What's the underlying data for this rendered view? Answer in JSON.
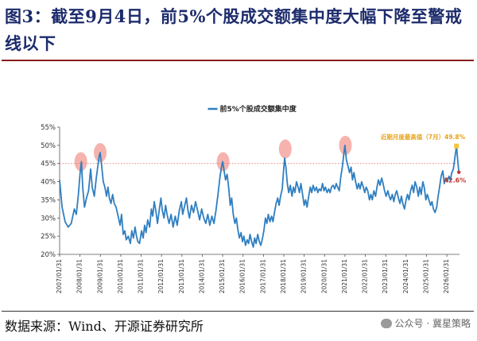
{
  "header": {
    "title": "图3：截至9月4日，前5%个股成交额集中度大幅下降至警戒线以下"
  },
  "footer": {
    "source": "数据来源：Wind、开源证券研究所",
    "watermark": "公众号 · 冀星策略"
  },
  "chart_data": {
    "type": "line",
    "title": "",
    "legend_position": "top-center",
    "grid": false,
    "xlabel": "",
    "ylabel": "",
    "ylim": [
      20,
      55
    ],
    "y_ticks": [
      "20%",
      "25%",
      "30%",
      "35%",
      "40%",
      "45%",
      "50%",
      "55%"
    ],
    "x_ticks": [
      "2007/01/31",
      "2008/01/31",
      "2009/01/31",
      "2010/01/31",
      "2011/01/31",
      "2012/01/31",
      "2013/01/31",
      "2014/01/31",
      "2015/01/31",
      "2016/01/31",
      "2017/01/31",
      "2018/01/31",
      "2019/01/31",
      "2020/01/31",
      "2021/01/31",
      "2022/01/31",
      "2023/01/31",
      "2024/01/31",
      "2025/01/31",
      "2026/01/31"
    ],
    "x_range": [
      2007.08,
      2026.7
    ],
    "reference_line": {
      "value": 45,
      "color": "#e57373",
      "style": "dotted"
    },
    "highlight_circles": [
      {
        "x": 2008.12,
        "y": 45.5
      },
      {
        "x": 2009.07,
        "y": 48.0
      },
      {
        "x": 2015.1,
        "y": 45.5
      },
      {
        "x": 2018.15,
        "y": 49.0
      },
      {
        "x": 2021.1,
        "y": 50.0
      }
    ],
    "annotations": {
      "high": {
        "label": "近期月度最高值（7月）49.8%",
        "x": 2026.55,
        "y": 49.8,
        "color": "#f5c542"
      },
      "low": {
        "label": "42.6%",
        "x": 2026.67,
        "y": 42.6,
        "color": "#c0392b"
      }
    },
    "series": [
      {
        "name": "前5%个股成交额集中度",
        "color": "#2f7fc1",
        "points": [
          [
            2007.08,
            40.5
          ],
          [
            2007.2,
            33.0
          ],
          [
            2007.35,
            29.0
          ],
          [
            2007.5,
            27.5
          ],
          [
            2007.65,
            28.5
          ],
          [
            2007.8,
            32.5
          ],
          [
            2007.9,
            31.0
          ],
          [
            2008.0,
            36.5
          ],
          [
            2008.08,
            42.0
          ],
          [
            2008.15,
            45.5
          ],
          [
            2008.22,
            38.0
          ],
          [
            2008.3,
            33.0
          ],
          [
            2008.4,
            35.5
          ],
          [
            2008.5,
            37.5
          ],
          [
            2008.6,
            43.5
          ],
          [
            2008.68,
            38.5
          ],
          [
            2008.78,
            36.0
          ],
          [
            2008.88,
            41.0
          ],
          [
            2008.95,
            44.0
          ],
          [
            2009.02,
            47.0
          ],
          [
            2009.07,
            48.0
          ],
          [
            2009.14,
            44.5
          ],
          [
            2009.22,
            40.0
          ],
          [
            2009.3,
            38.5
          ],
          [
            2009.38,
            36.0
          ],
          [
            2009.45,
            38.5
          ],
          [
            2009.52,
            35.5
          ],
          [
            2009.6,
            34.0
          ],
          [
            2009.68,
            36.5
          ],
          [
            2009.76,
            34.0
          ],
          [
            2009.85,
            33.0
          ],
          [
            2009.95,
            30.5
          ],
          [
            2010.05,
            28.0
          ],
          [
            2010.12,
            31.0
          ],
          [
            2010.2,
            25.5
          ],
          [
            2010.28,
            26.5
          ],
          [
            2010.35,
            24.0
          ],
          [
            2010.45,
            25.0
          ],
          [
            2010.55,
            23.0
          ],
          [
            2010.62,
            26.5
          ],
          [
            2010.7,
            24.5
          ],
          [
            2010.78,
            27.5
          ],
          [
            2010.85,
            25.0
          ],
          [
            2010.92,
            23.5
          ],
          [
            2011.0,
            23.0
          ],
          [
            2011.1,
            26.5
          ],
          [
            2011.18,
            24.5
          ],
          [
            2011.25,
            28.0
          ],
          [
            2011.32,
            26.0
          ],
          [
            2011.4,
            29.5
          ],
          [
            2011.5,
            27.5
          ],
          [
            2011.58,
            32.5
          ],
          [
            2011.65,
            30.5
          ],
          [
            2011.72,
            34.5
          ],
          [
            2011.8,
            32.0
          ],
          [
            2011.88,
            28.5
          ],
          [
            2011.95,
            31.5
          ],
          [
            2012.05,
            35.5
          ],
          [
            2012.12,
            32.0
          ],
          [
            2012.2,
            30.0
          ],
          [
            2012.28,
            33.5
          ],
          [
            2012.35,
            31.0
          ],
          [
            2012.45,
            28.5
          ],
          [
            2012.55,
            31.0
          ],
          [
            2012.65,
            27.5
          ],
          [
            2012.75,
            30.5
          ],
          [
            2012.85,
            28.0
          ],
          [
            2012.95,
            32.0
          ],
          [
            2013.05,
            34.5
          ],
          [
            2013.12,
            31.0
          ],
          [
            2013.2,
            33.0
          ],
          [
            2013.3,
            35.5
          ],
          [
            2013.38,
            32.0
          ],
          [
            2013.45,
            30.0
          ],
          [
            2013.55,
            33.5
          ],
          [
            2013.65,
            31.5
          ],
          [
            2013.75,
            34.5
          ],
          [
            2013.85,
            32.0
          ],
          [
            2013.95,
            29.5
          ],
          [
            2014.05,
            32.5
          ],
          [
            2014.15,
            30.0
          ],
          [
            2014.25,
            28.5
          ],
          [
            2014.35,
            31.0
          ],
          [
            2014.45,
            28.0
          ],
          [
            2014.55,
            30.5
          ],
          [
            2014.65,
            28.5
          ],
          [
            2014.75,
            32.0
          ],
          [
            2014.85,
            36.5
          ],
          [
            2014.95,
            41.5
          ],
          [
            2015.02,
            44.0
          ],
          [
            2015.08,
            45.5
          ],
          [
            2015.15,
            43.0
          ],
          [
            2015.22,
            40.5
          ],
          [
            2015.3,
            42.0
          ],
          [
            2015.38,
            38.0
          ],
          [
            2015.45,
            33.5
          ],
          [
            2015.52,
            35.5
          ],
          [
            2015.6,
            31.0
          ],
          [
            2015.68,
            28.5
          ],
          [
            2015.75,
            30.0
          ],
          [
            2015.82,
            27.0
          ],
          [
            2015.9,
            24.5
          ],
          [
            2015.98,
            26.0
          ],
          [
            2016.05,
            23.5
          ],
          [
            2016.12,
            25.0
          ],
          [
            2016.2,
            22.5
          ],
          [
            2016.28,
            24.0
          ],
          [
            2016.35,
            23.0
          ],
          [
            2016.42,
            25.5
          ],
          [
            2016.5,
            23.5
          ],
          [
            2016.58,
            22.0
          ],
          [
            2016.65,
            24.5
          ],
          [
            2016.72,
            23.0
          ],
          [
            2016.8,
            25.5
          ],
          [
            2016.88,
            23.5
          ],
          [
            2016.95,
            22.5
          ],
          [
            2017.02,
            24.0
          ],
          [
            2017.1,
            26.5
          ],
          [
            2017.18,
            30.0
          ],
          [
            2017.25,
            28.5
          ],
          [
            2017.32,
            31.0
          ],
          [
            2017.4,
            29.0
          ],
          [
            2017.48,
            30.5
          ],
          [
            2017.55,
            29.0
          ],
          [
            2017.62,
            31.5
          ],
          [
            2017.7,
            34.0
          ],
          [
            2017.78,
            35.5
          ],
          [
            2017.85,
            33.5
          ],
          [
            2017.92,
            36.0
          ],
          [
            2018.0,
            38.0
          ],
          [
            2018.06,
            42.5
          ],
          [
            2018.12,
            46.5
          ],
          [
            2018.18,
            44.0
          ],
          [
            2018.25,
            39.5
          ],
          [
            2018.32,
            37.0
          ],
          [
            2018.4,
            39.0
          ],
          [
            2018.48,
            36.0
          ],
          [
            2018.55,
            38.5
          ],
          [
            2018.62,
            37.0
          ],
          [
            2018.7,
            40.0
          ],
          [
            2018.78,
            38.5
          ],
          [
            2018.85,
            37.0
          ],
          [
            2018.92,
            39.5
          ],
          [
            2019.0,
            36.5
          ],
          [
            2019.08,
            33.5
          ],
          [
            2019.15,
            35.0
          ],
          [
            2019.22,
            33.0
          ],
          [
            2019.3,
            36.0
          ],
          [
            2019.38,
            38.5
          ],
          [
            2019.45,
            37.0
          ],
          [
            2019.52,
            39.0
          ],
          [
            2019.6,
            37.5
          ],
          [
            2019.68,
            38.5
          ],
          [
            2019.75,
            37.0
          ],
          [
            2019.82,
            38.0
          ],
          [
            2019.9,
            37.5
          ],
          [
            2019.98,
            39.5
          ],
          [
            2020.05,
            37.5
          ],
          [
            2020.12,
            38.5
          ],
          [
            2020.2,
            37.0
          ],
          [
            2020.28,
            38.0
          ],
          [
            2020.35,
            37.0
          ],
          [
            2020.42,
            38.5
          ],
          [
            2020.5,
            39.0
          ],
          [
            2020.58,
            38.0
          ],
          [
            2020.65,
            39.5
          ],
          [
            2020.72,
            38.5
          ],
          [
            2020.8,
            37.5
          ],
          [
            2020.88,
            41.5
          ],
          [
            2020.95,
            44.0
          ],
          [
            2021.02,
            47.5
          ],
          [
            2021.08,
            50.0
          ],
          [
            2021.15,
            46.0
          ],
          [
            2021.22,
            44.5
          ],
          [
            2021.3,
            42.5
          ],
          [
            2021.38,
            44.0
          ],
          [
            2021.45,
            40.5
          ],
          [
            2021.52,
            42.5
          ],
          [
            2021.6,
            40.0
          ],
          [
            2021.68,
            38.0
          ],
          [
            2021.75,
            39.5
          ],
          [
            2021.82,
            38.0
          ],
          [
            2021.9,
            40.0
          ],
          [
            2021.98,
            38.5
          ],
          [
            2022.05,
            37.0
          ],
          [
            2022.12,
            38.5
          ],
          [
            2022.2,
            37.5
          ],
          [
            2022.28,
            35.0
          ],
          [
            2022.35,
            36.5
          ],
          [
            2022.42,
            35.0
          ],
          [
            2022.5,
            37.5
          ],
          [
            2022.58,
            36.0
          ],
          [
            2022.65,
            38.5
          ],
          [
            2022.72,
            40.5
          ],
          [
            2022.8,
            39.0
          ],
          [
            2022.88,
            41.0
          ],
          [
            2022.95,
            39.5
          ],
          [
            2023.02,
            37.5
          ],
          [
            2023.1,
            36.0
          ],
          [
            2023.18,
            37.5
          ],
          [
            2023.25,
            36.0
          ],
          [
            2023.32,
            35.0
          ],
          [
            2023.4,
            36.5
          ],
          [
            2023.48,
            34.5
          ],
          [
            2023.55,
            36.5
          ],
          [
            2023.62,
            37.5
          ],
          [
            2023.7,
            35.5
          ],
          [
            2023.78,
            34.0
          ],
          [
            2023.85,
            36.0
          ],
          [
            2023.92,
            34.0
          ],
          [
            2024.0,
            32.5
          ],
          [
            2024.08,
            35.0
          ],
          [
            2024.15,
            36.5
          ],
          [
            2024.22,
            35.0
          ],
          [
            2024.3,
            37.5
          ],
          [
            2024.38,
            39.0
          ],
          [
            2024.45,
            37.0
          ],
          [
            2024.52,
            40.0
          ],
          [
            2024.6,
            38.5
          ],
          [
            2024.68,
            36.0
          ],
          [
            2024.75,
            38.5
          ],
          [
            2024.82,
            36.5
          ],
          [
            2024.9,
            40.0
          ],
          [
            2024.97,
            38.5
          ],
          [
            2025.05,
            35.0
          ],
          [
            2025.12,
            36.5
          ],
          [
            2025.2,
            35.0
          ],
          [
            2025.28,
            33.5
          ],
          [
            2025.35,
            34.5
          ],
          [
            2025.42,
            32.5
          ],
          [
            2025.5,
            31.5
          ],
          [
            2025.58,
            33.0
          ],
          [
            2025.65,
            36.0
          ],
          [
            2025.72,
            38.5
          ],
          [
            2025.8,
            41.5
          ],
          [
            2025.88,
            43.0
          ],
          [
            2025.95,
            39.5
          ],
          [
            2026.02,
            41.0
          ],
          [
            2026.1,
            40.0
          ],
          [
            2026.18,
            41.5
          ],
          [
            2026.25,
            40.5
          ],
          [
            2026.32,
            42.5
          ],
          [
            2026.4,
            43.5
          ],
          [
            2026.48,
            47.0
          ],
          [
            2026.55,
            49.8
          ],
          [
            2026.62,
            45.5
          ],
          [
            2026.67,
            42.6
          ]
        ]
      }
    ]
  }
}
